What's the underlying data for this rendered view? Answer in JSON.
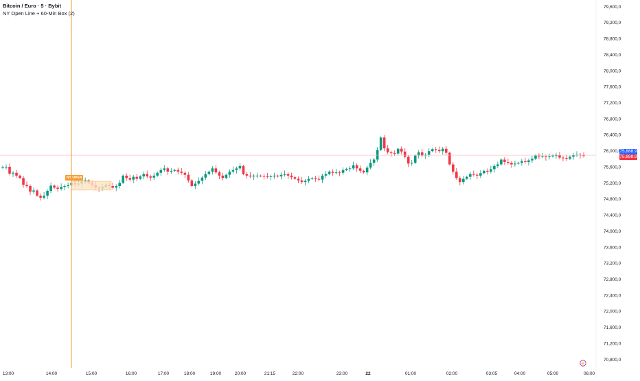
{
  "legend": {
    "title": "Bitcoin / Euro · 5 · Bybit",
    "indicator": "NY Open Line + 60-Min Box (2)"
  },
  "price_badges": {
    "upper": "75,888.9",
    "lower": "75,888.9",
    "upper_color": "#2962ff",
    "lower_color": "#f23645"
  },
  "ny_label": "NY OPEN",
  "colors": {
    "up": "#089981",
    "down": "#f23645",
    "ny_line": "#f59a2a",
    "box_fill": "#fbe3c2",
    "box_stroke": "#f5b971",
    "axis_text": "#131722",
    "price_line": "#f7b8bd"
  },
  "chart_data": {
    "type": "candlestick",
    "x_ticks": [
      "13:00",
      "14:00",
      "15:00",
      "16:00",
      "17:00",
      "18:00",
      "19:00",
      "20:00",
      "21:15",
      "22:00",
      "23:00",
      "22",
      "01:00",
      "02:00",
      "03:05",
      "04:00",
      "05:00",
      "06:00"
    ],
    "y_ticks": [
      79600,
      79200,
      78800,
      78400,
      78000,
      77600,
      77200,
      76800,
      76400,
      76000,
      75600,
      75200,
      74800,
      74400,
      74000,
      73600,
      73200,
      72800,
      72400,
      72000,
      71600,
      71200,
      70800
    ],
    "ylim": [
      70720,
      79760
    ],
    "last_price": 75888.9,
    "ny_open_time": "14:30",
    "ny_box_price_range": [
      75020,
      75240
    ],
    "closes": [
      75600,
      75600,
      75430,
      75450,
      75380,
      75320,
      75150,
      75120,
      74980,
      75010,
      74880,
      74830,
      74880,
      75000,
      75130,
      75080,
      75050,
      75100,
      75120,
      75140,
      75200,
      75160,
      75180,
      75230,
      75260,
      75200,
      75150,
      75080,
      75060,
      75100,
      75150,
      75120,
      75080,
      75120,
      75200,
      75380,
      75320,
      75280,
      75350,
      75300,
      75360,
      75420,
      75360,
      75330,
      75380,
      75450,
      75520,
      75560,
      75480,
      75500,
      75520,
      75480,
      75450,
      75400,
      75260,
      75120,
      75180,
      75250,
      75330,
      75420,
      75480,
      75560,
      75460,
      75380,
      75320,
      75400,
      75480,
      75520,
      75560,
      75620,
      75420,
      75380,
      75360,
      75380,
      75380,
      75370,
      75360,
      75350,
      75360,
      75380,
      75360,
      75400,
      75420,
      75380,
      75340,
      75300,
      75260,
      75220,
      75250,
      75300,
      75320,
      75300,
      75280,
      75380,
      75420,
      75480,
      75450,
      75460,
      75450,
      75520,
      75550,
      75560,
      75640,
      75560,
      75500,
      75460,
      75580,
      75700,
      75780,
      76020,
      76330,
      76060,
      75960,
      75940,
      75930,
      76050,
      75980,
      75850,
      75680,
      75700,
      75880,
      75960,
      75880,
      75900,
      75990,
      76040,
      76020,
      75990,
      76050,
      75950,
      75660,
      75480,
      75320,
      75220,
      75300,
      75350,
      75420,
      75400,
      75380,
      75440,
      75500,
      75480,
      75540,
      75620,
      75660,
      75780,
      75720,
      75700,
      75660,
      75680,
      75700,
      75740,
      75720,
      75760,
      75800,
      75880,
      75860,
      75860,
      75840,
      75860,
      75880,
      75890,
      75830,
      75820,
      75800,
      75850,
      75890,
      75900,
      75890,
      75888.9
    ]
  }
}
